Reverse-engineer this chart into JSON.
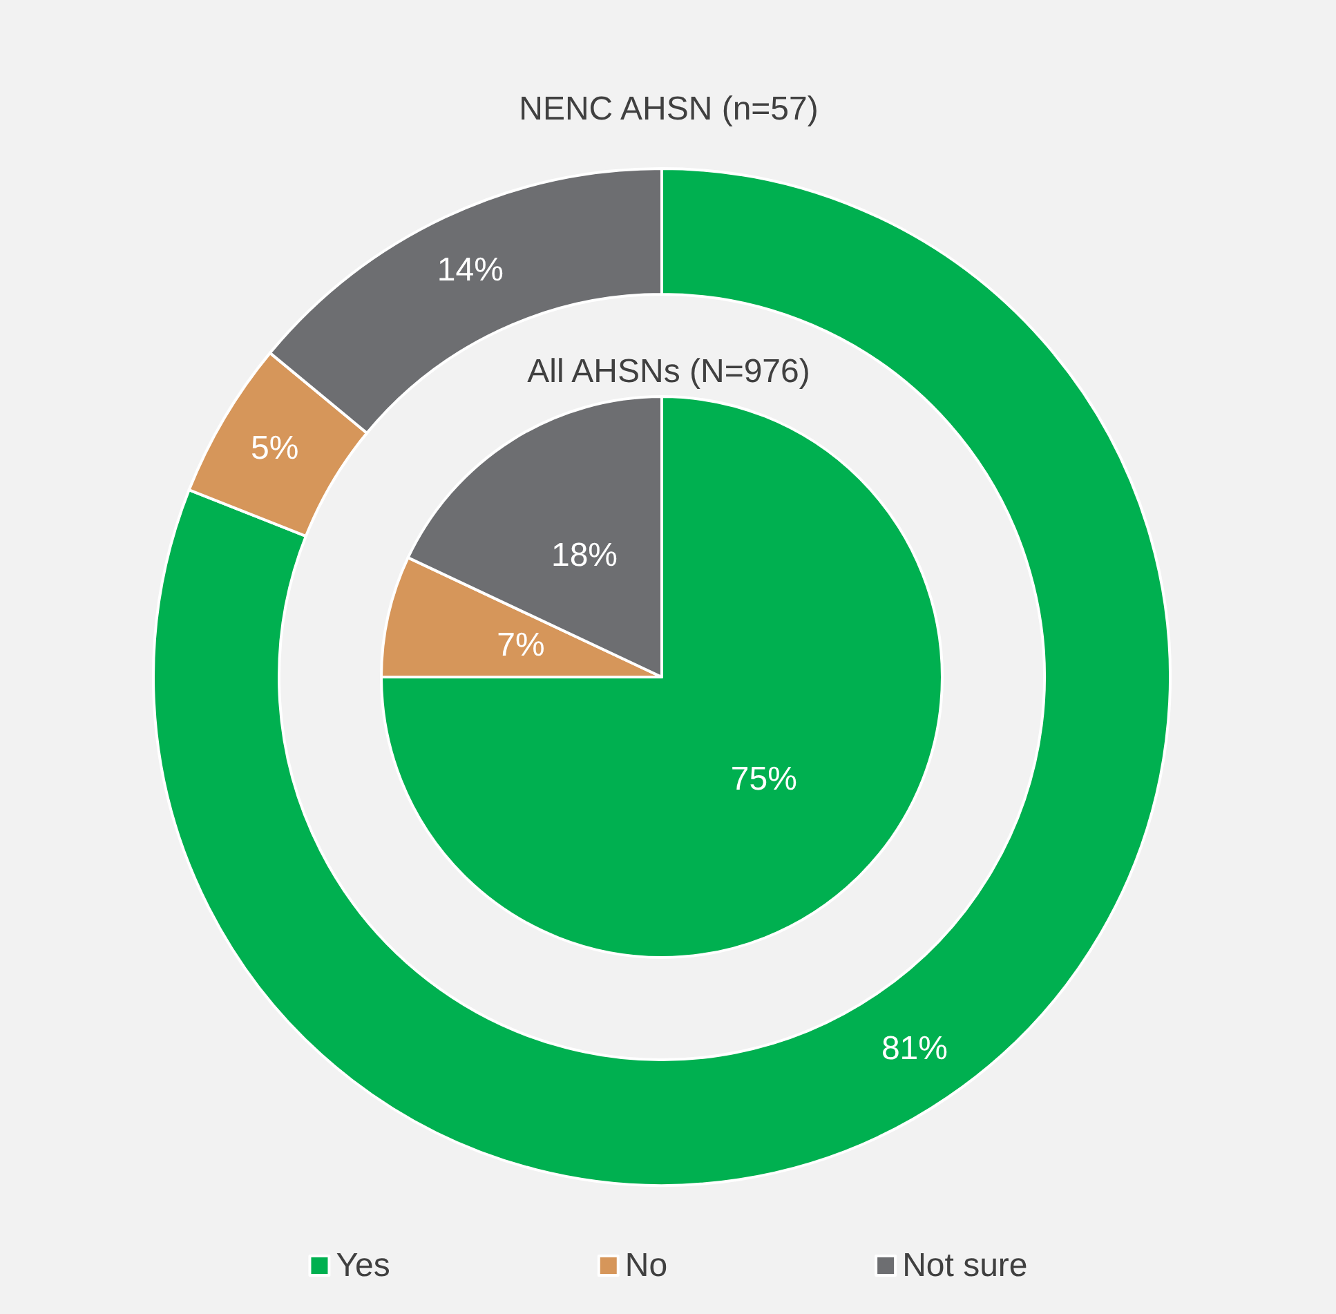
{
  "chart_data": [
    {
      "type": "donut",
      "title": "NENC AHSN (n=57)",
      "categories": [
        "Yes",
        "No",
        "Not sure"
      ],
      "values": [
        81,
        5,
        14
      ],
      "value_labels": [
        "81%",
        "5%",
        "14%"
      ],
      "colors": [
        "#00b050",
        "#d6965a",
        "#6d6e71"
      ],
      "legend": "bottom"
    },
    {
      "type": "pie",
      "title": "All AHSNs (N=976)",
      "categories": [
        null,
        null,
        null
      ],
      "values": [
        75,
        7,
        18
      ],
      "value_labels": [
        "75%",
        "7%",
        "18%"
      ],
      "colors": [
        "#00b050",
        "#d6965a",
        "#6d6e71"
      ]
    }
  ]
}
